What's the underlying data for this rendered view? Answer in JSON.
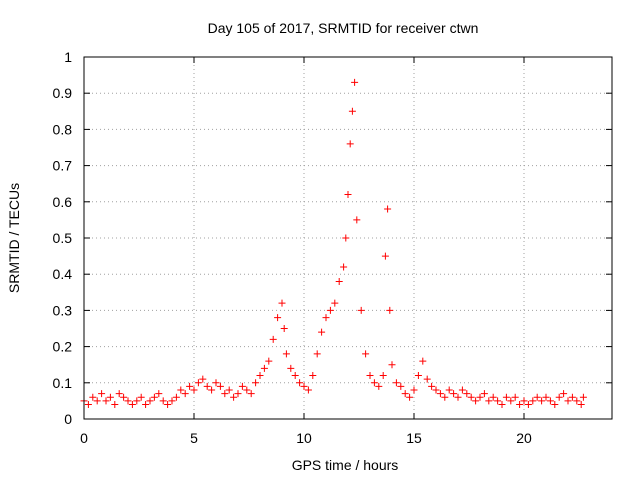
{
  "chart_data": {
    "type": "scatter",
    "title": "Day 105 of 2017, SRMTID for receiver ctwn",
    "xlabel": "GPS time / hours",
    "ylabel": "SRMTID / TECUs",
    "xlim": [
      0,
      24
    ],
    "ylim": [
      0,
      1
    ],
    "xticks": [
      0,
      5,
      10,
      15,
      20
    ],
    "xtick_labels": [
      "0",
      "5",
      "10",
      "15",
      "20"
    ],
    "yticks": [
      0,
      0.1,
      0.2,
      0.3,
      0.4,
      0.5,
      0.6,
      0.7,
      0.8,
      0.9,
      1
    ],
    "ytick_labels": [
      "0",
      "0.1",
      "0.2",
      "0.3",
      "0.4",
      "0.5",
      "0.6",
      "0.7",
      "0.8",
      "0.9",
      "1"
    ],
    "grid": true,
    "marker": "+",
    "color": "#ff0000",
    "series": [
      {
        "name": "SRMTID",
        "x": [
          0.0,
          0.2,
          0.4,
          0.6,
          0.8,
          1.0,
          1.2,
          1.4,
          1.6,
          1.8,
          2.0,
          2.2,
          2.4,
          2.6,
          2.8,
          3.0,
          3.2,
          3.4,
          3.6,
          3.8,
          4.0,
          4.2,
          4.4,
          4.6,
          4.8,
          5.0,
          5.2,
          5.4,
          5.6,
          5.8,
          6.0,
          6.2,
          6.4,
          6.6,
          6.8,
          7.0,
          7.2,
          7.4,
          7.6,
          7.8,
          8.0,
          8.2,
          8.4,
          8.6,
          8.8,
          9.0,
          9.1,
          9.2,
          9.4,
          9.6,
          9.8,
          10.0,
          10.2,
          10.4,
          10.6,
          10.8,
          11.0,
          11.2,
          11.4,
          11.6,
          11.8,
          11.9,
          12.0,
          12.1,
          12.2,
          12.3,
          12.4,
          12.6,
          12.8,
          13.0,
          13.2,
          13.4,
          13.6,
          13.7,
          13.8,
          13.9,
          14.0,
          14.2,
          14.4,
          14.6,
          14.8,
          15.0,
          15.2,
          15.4,
          15.6,
          15.8,
          16.0,
          16.2,
          16.4,
          16.6,
          16.8,
          17.0,
          17.2,
          17.4,
          17.6,
          17.8,
          18.0,
          18.2,
          18.4,
          18.6,
          18.8,
          19.0,
          19.2,
          19.4,
          19.6,
          19.8,
          20.0,
          20.2,
          20.4,
          20.6,
          20.8,
          21.0,
          21.2,
          21.4,
          21.6,
          21.8,
          22.0,
          22.2,
          22.4,
          22.6,
          22.7
        ],
        "y": [
          0.05,
          0.04,
          0.06,
          0.05,
          0.07,
          0.05,
          0.06,
          0.04,
          0.07,
          0.06,
          0.05,
          0.04,
          0.05,
          0.06,
          0.04,
          0.05,
          0.06,
          0.07,
          0.05,
          0.04,
          0.05,
          0.06,
          0.08,
          0.07,
          0.09,
          0.08,
          0.1,
          0.11,
          0.09,
          0.08,
          0.1,
          0.09,
          0.07,
          0.08,
          0.06,
          0.07,
          0.09,
          0.08,
          0.07,
          0.1,
          0.12,
          0.14,
          0.16,
          0.22,
          0.28,
          0.32,
          0.25,
          0.18,
          0.14,
          0.12,
          0.1,
          0.09,
          0.08,
          0.12,
          0.18,
          0.24,
          0.28,
          0.3,
          0.32,
          0.38,
          0.42,
          0.5,
          0.62,
          0.76,
          0.85,
          0.93,
          0.55,
          0.3,
          0.18,
          0.12,
          0.1,
          0.09,
          0.12,
          0.45,
          0.58,
          0.3,
          0.15,
          0.1,
          0.09,
          0.07,
          0.06,
          0.08,
          0.12,
          0.16,
          0.11,
          0.09,
          0.08,
          0.07,
          0.06,
          0.08,
          0.07,
          0.06,
          0.08,
          0.07,
          0.06,
          0.05,
          0.06,
          0.07,
          0.05,
          0.06,
          0.05,
          0.04,
          0.06,
          0.05,
          0.06,
          0.04,
          0.05,
          0.04,
          0.05,
          0.06,
          0.05,
          0.06,
          0.05,
          0.04,
          0.06,
          0.07,
          0.05,
          0.06,
          0.05,
          0.04,
          0.06
        ]
      }
    ]
  }
}
